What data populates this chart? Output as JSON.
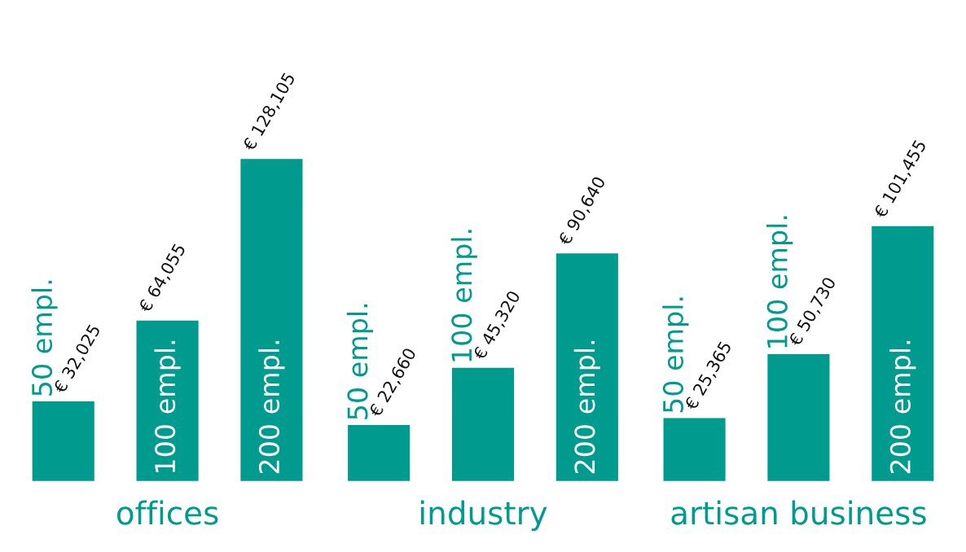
{
  "chart_data": {
    "type": "bar",
    "categories": [
      "offices",
      "industry",
      "artisan business"
    ],
    "series": [
      {
        "name": "50 empl.",
        "color": "#009b8f",
        "values": [
          32025,
          22660,
          25365
        ],
        "value_labels": [
          "€ 32,025",
          "€ 22,660",
          "€ 25,365"
        ]
      },
      {
        "name": "100 empl.",
        "color": "#009b8f",
        "values": [
          64055,
          45320,
          50730
        ],
        "value_labels": [
          "€ 64,055",
          "€ 45,320",
          "€ 50,730"
        ]
      },
      {
        "name": "200 empl.",
        "color": "#009b8f",
        "values": [
          128105,
          90640,
          101455
        ],
        "value_labels": [
          "€ 128,105",
          "€ 90,640",
          "€ 101,455"
        ]
      }
    ],
    "legend": false,
    "grid": false
  }
}
